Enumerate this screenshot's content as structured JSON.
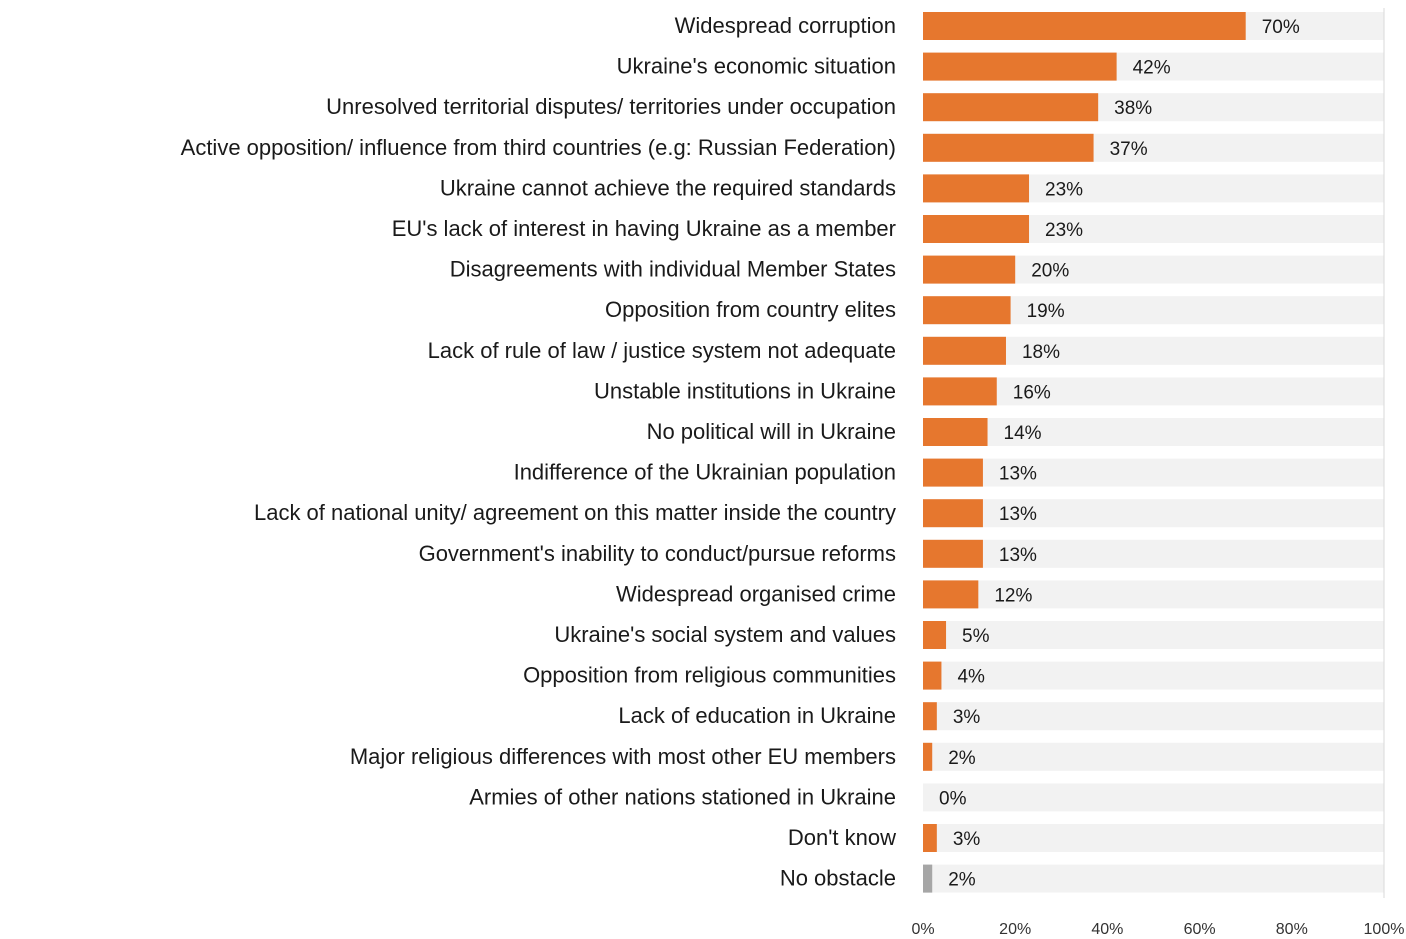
{
  "chart_data": {
    "type": "bar",
    "orientation": "horizontal",
    "categories": [
      "Widespread corruption",
      "Ukraine's economic situation",
      "Unresolved territorial disputes/ territories under occupation",
      "Active opposition/ influence from third countries (e.g: Russian Federation)",
      "Ukraine cannot achieve the required standards",
      "EU's lack of interest in having Ukraine as a member",
      "Disagreements with individual Member States",
      "Opposition from country elites",
      "Lack of rule of law / justice system not adequate",
      "Unstable institutions in Ukraine",
      "No political will in Ukraine",
      "Indifference of the Ukrainian population",
      "Lack of national unity/ agreement on this matter inside the country",
      "Government's inability to conduct/pursue reforms",
      "Widespread organised crime",
      "Ukraine's social system and values",
      "Opposition from religious communities",
      "Lack of education in Ukraine",
      "Major religious differences with most other EU members",
      "Armies of other nations stationed in Ukraine",
      "Don't know",
      "No obstacle"
    ],
    "values": [
      70,
      42,
      38,
      37,
      23,
      23,
      20,
      19,
      18,
      16,
      14,
      13,
      13,
      13,
      12,
      5,
      4,
      3,
      2,
      0,
      3,
      2
    ],
    "value_labels": [
      "70%",
      "42%",
      "38%",
      "37%",
      "23%",
      "23%",
      "20%",
      "19%",
      "18%",
      "16%",
      "14%",
      "13%",
      "13%",
      "13%",
      "12%",
      "5%",
      "4%",
      "3%",
      "2%",
      "0%",
      "3%",
      "2%"
    ],
    "bar_colors": [
      "#e6772e",
      "#e6772e",
      "#e6772e",
      "#e6772e",
      "#e6772e",
      "#e6772e",
      "#e6772e",
      "#e6772e",
      "#e6772e",
      "#e6772e",
      "#e6772e",
      "#e6772e",
      "#e6772e",
      "#e6772e",
      "#e6772e",
      "#e6772e",
      "#e6772e",
      "#e6772e",
      "#e6772e",
      "#e6772e",
      "#e6772e",
      "#a6a6a6"
    ],
    "track_color": "#f2f2f2",
    "xlim": [
      0,
      100
    ],
    "x_ticks": [
      "0%",
      "20%",
      "40%",
      "60%",
      "80%",
      "100%"
    ],
    "title": "",
    "xlabel": "",
    "ylabel": "",
    "grid": false,
    "legend": "none"
  }
}
